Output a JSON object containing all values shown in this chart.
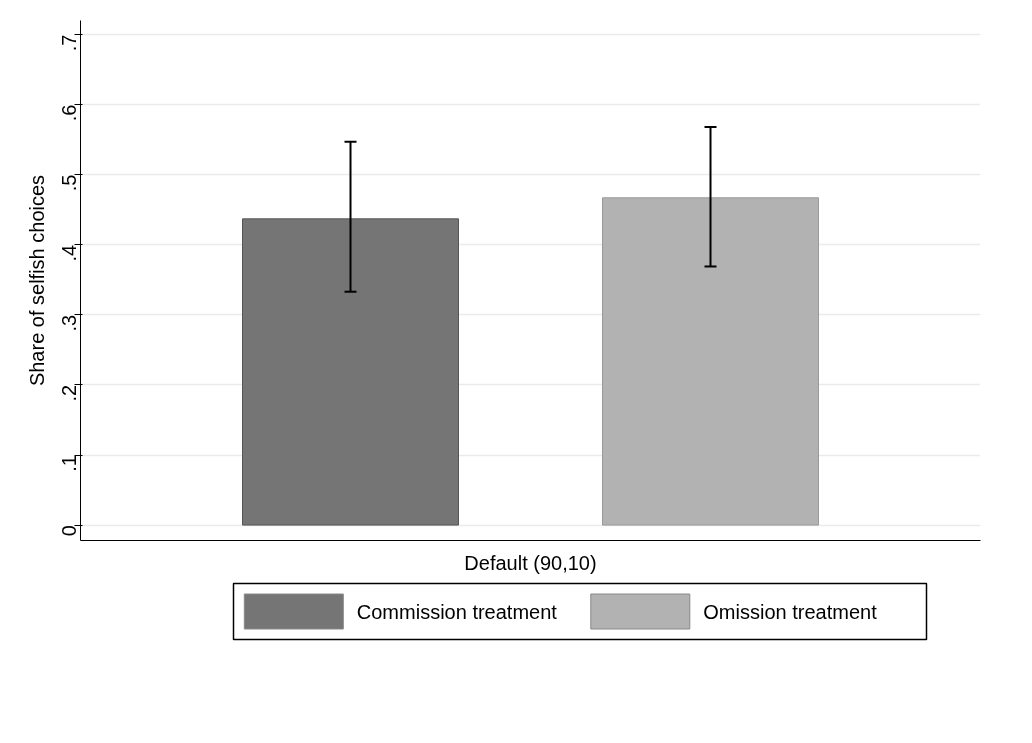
{
  "chart_data": {
    "type": "bar",
    "ylabel": "Share of selfish choices",
    "categories": [
      "Default (90,10)"
    ],
    "series": [
      {
        "name": "Commission treatment",
        "color": "#757575",
        "values": [
          0.437
        ],
        "errors": [
          [
            0.333,
            0.547
          ]
        ]
      },
      {
        "name": "Omission treatment",
        "color": "#b2b2b2",
        "values": [
          0.467
        ],
        "errors": [
          [
            0.369,
            0.568
          ]
        ]
      }
    ],
    "ylim": [
      -0.022,
      0.72
    ],
    "yticks": [
      0,
      {
        "value": 0.1,
        "label": ".1"
      },
      {
        "value": 0.2,
        "label": ".2"
      },
      {
        "value": 0.3,
        "label": ".3"
      },
      {
        "value": 0.4,
        "label": ".4"
      },
      {
        "value": 0.5,
        "label": ".5"
      },
      {
        "value": 0.6,
        "label": ".6"
      },
      {
        "value": 0.7,
        "label": ".7"
      }
    ],
    "grid": "y",
    "legend": "bottom"
  }
}
